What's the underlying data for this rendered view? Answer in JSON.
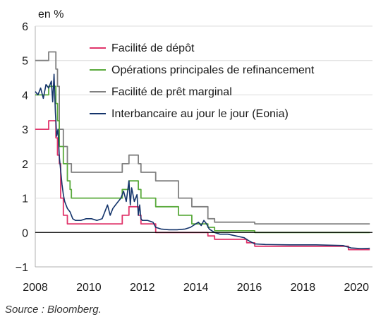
{
  "chart_data": {
    "type": "line",
    "unit_label": "en %",
    "source": "Source : Bloomberg.",
    "xlim": [
      2008,
      2020.6
    ],
    "ylim": [
      -1,
      6
    ],
    "x_ticks": [
      {
        "value": 2008,
        "label": "2008"
      },
      {
        "value": 2010,
        "label": "2010"
      },
      {
        "value": 2012,
        "label": "2012"
      },
      {
        "value": 2014,
        "label": "2014"
      },
      {
        "value": 2016,
        "label": "2016"
      },
      {
        "value": 2018,
        "label": "2018"
      },
      {
        "value": 2020,
        "label": "2020"
      }
    ],
    "y_ticks": [
      {
        "value": 6,
        "label": "6"
      },
      {
        "value": 5,
        "label": "5"
      },
      {
        "value": 4,
        "label": "4"
      },
      {
        "value": 3,
        "label": "3"
      },
      {
        "value": 2,
        "label": "2"
      },
      {
        "value": 1,
        "label": "1"
      },
      {
        "value": 0,
        "label": "0"
      },
      {
        "value": -1,
        "label": "−1"
      }
    ],
    "legend_position": "top-right",
    "series": [
      {
        "name": "Facilité de dépôt",
        "color": "#e0356b",
        "step": true,
        "points": [
          [
            2008.0,
            3.0
          ],
          [
            2008.5,
            3.25
          ],
          [
            2008.77,
            2.75
          ],
          [
            2008.83,
            2.25
          ],
          [
            2008.9,
            2.0
          ],
          [
            2008.95,
            1.0
          ],
          [
            2009.05,
            0.5
          ],
          [
            2009.2,
            0.25
          ],
          [
            2011.25,
            0.5
          ],
          [
            2011.5,
            0.75
          ],
          [
            2011.85,
            0.5
          ],
          [
            2011.95,
            0.25
          ],
          [
            2012.5,
            0.0
          ],
          [
            2014.45,
            -0.1
          ],
          [
            2014.7,
            -0.2
          ],
          [
            2015.9,
            -0.3
          ],
          [
            2016.2,
            -0.4
          ],
          [
            2019.7,
            -0.5
          ],
          [
            2020.5,
            -0.5
          ]
        ]
      },
      {
        "name": "Opérations principales de refinancement",
        "color": "#5aaa3c",
        "step": true,
        "points": [
          [
            2008.0,
            4.0
          ],
          [
            2008.5,
            4.25
          ],
          [
            2008.77,
            3.75
          ],
          [
            2008.83,
            3.25
          ],
          [
            2008.9,
            2.5
          ],
          [
            2009.05,
            2.0
          ],
          [
            2009.2,
            1.5
          ],
          [
            2009.3,
            1.25
          ],
          [
            2009.35,
            1.0
          ],
          [
            2011.25,
            1.25
          ],
          [
            2011.5,
            1.5
          ],
          [
            2011.85,
            1.25
          ],
          [
            2011.95,
            1.0
          ],
          [
            2012.5,
            0.75
          ],
          [
            2013.35,
            0.5
          ],
          [
            2013.85,
            0.25
          ],
          [
            2014.45,
            0.15
          ],
          [
            2014.7,
            0.05
          ],
          [
            2016.2,
            0.0
          ],
          [
            2020.5,
            0.0
          ]
        ]
      },
      {
        "name": "Facilité de prêt marginal",
        "color": "#808080",
        "step": true,
        "points": [
          [
            2008.0,
            5.0
          ],
          [
            2008.5,
            5.25
          ],
          [
            2008.77,
            4.75
          ],
          [
            2008.83,
            4.25
          ],
          [
            2008.9,
            3.0
          ],
          [
            2009.05,
            2.5
          ],
          [
            2009.2,
            2.0
          ],
          [
            2009.35,
            1.75
          ],
          [
            2011.25,
            2.0
          ],
          [
            2011.5,
            2.25
          ],
          [
            2011.85,
            2.0
          ],
          [
            2011.95,
            1.75
          ],
          [
            2012.5,
            1.5
          ],
          [
            2013.35,
            1.0
          ],
          [
            2013.85,
            0.75
          ],
          [
            2014.45,
            0.4
          ],
          [
            2014.7,
            0.3
          ],
          [
            2016.2,
            0.25
          ],
          [
            2020.5,
            0.25
          ]
        ]
      },
      {
        "name": "Interbancaire au jour le jour (Eonia)",
        "color": "#14346b",
        "step": false,
        "points": [
          [
            2008.0,
            4.1
          ],
          [
            2008.1,
            4.0
          ],
          [
            2008.2,
            4.2
          ],
          [
            2008.3,
            3.9
          ],
          [
            2008.4,
            4.3
          ],
          [
            2008.5,
            4.2
          ],
          [
            2008.6,
            4.4
          ],
          [
            2008.65,
            3.8
          ],
          [
            2008.7,
            4.6
          ],
          [
            2008.75,
            3.5
          ],
          [
            2008.8,
            2.8
          ],
          [
            2008.85,
            3.0
          ],
          [
            2008.9,
            2.2
          ],
          [
            2008.95,
            1.8
          ],
          [
            2009.0,
            1.4
          ],
          [
            2009.05,
            1.1
          ],
          [
            2009.1,
            0.9
          ],
          [
            2009.2,
            0.7
          ],
          [
            2009.3,
            0.6
          ],
          [
            2009.4,
            0.4
          ],
          [
            2009.5,
            0.35
          ],
          [
            2009.7,
            0.35
          ],
          [
            2009.9,
            0.4
          ],
          [
            2010.1,
            0.4
          ],
          [
            2010.3,
            0.35
          ],
          [
            2010.5,
            0.4
          ],
          [
            2010.6,
            0.6
          ],
          [
            2010.7,
            0.8
          ],
          [
            2010.8,
            0.5
          ],
          [
            2010.9,
            0.7
          ],
          [
            2011.0,
            0.8
          ],
          [
            2011.1,
            0.9
          ],
          [
            2011.2,
            1.0
          ],
          [
            2011.3,
            1.2
          ],
          [
            2011.4,
            0.9
          ],
          [
            2011.5,
            1.5
          ],
          [
            2011.55,
            0.8
          ],
          [
            2011.6,
            1.3
          ],
          [
            2011.7,
            0.9
          ],
          [
            2011.8,
            1.1
          ],
          [
            2011.85,
            0.5
          ],
          [
            2011.9,
            0.8
          ],
          [
            2011.95,
            0.4
          ],
          [
            2012.0,
            0.35
          ],
          [
            2012.2,
            0.35
          ],
          [
            2012.4,
            0.3
          ],
          [
            2012.5,
            0.15
          ],
          [
            2012.7,
            0.1
          ],
          [
            2013.0,
            0.08
          ],
          [
            2013.3,
            0.08
          ],
          [
            2013.6,
            0.1
          ],
          [
            2013.8,
            0.15
          ],
          [
            2013.9,
            0.2
          ],
          [
            2014.0,
            0.25
          ],
          [
            2014.1,
            0.3
          ],
          [
            2014.2,
            0.2
          ],
          [
            2014.3,
            0.35
          ],
          [
            2014.4,
            0.25
          ],
          [
            2014.5,
            0.1
          ],
          [
            2014.7,
            0.0
          ],
          [
            2014.9,
            -0.05
          ],
          [
            2015.2,
            -0.05
          ],
          [
            2015.5,
            -0.1
          ],
          [
            2015.8,
            -0.15
          ],
          [
            2016.0,
            -0.25
          ],
          [
            2016.2,
            -0.33
          ],
          [
            2016.6,
            -0.35
          ],
          [
            2017.5,
            -0.36
          ],
          [
            2018.5,
            -0.36
          ],
          [
            2019.0,
            -0.37
          ],
          [
            2019.5,
            -0.38
          ],
          [
            2019.8,
            -0.45
          ],
          [
            2020.2,
            -0.47
          ],
          [
            2020.5,
            -0.46
          ]
        ]
      }
    ]
  }
}
